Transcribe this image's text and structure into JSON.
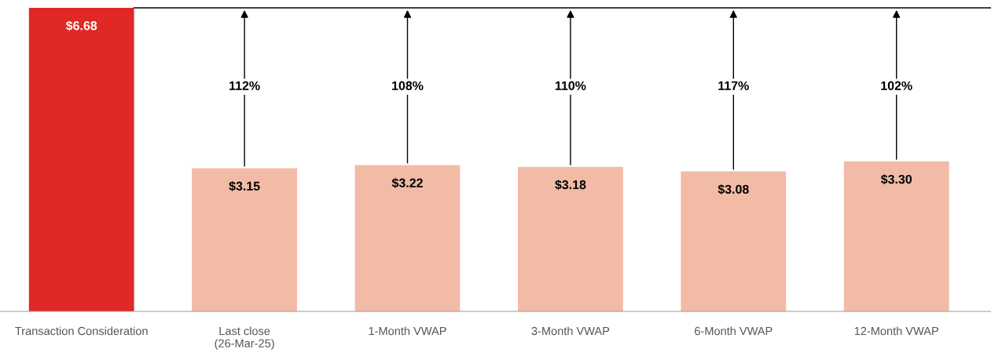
{
  "chart_data": {
    "type": "bar",
    "categories": [
      "Transaction Consideration",
      "Last close\n(26-Mar-25)",
      "1-Month VWAP",
      "3-Month VWAP",
      "6-Month VWAP",
      "12-Month VWAP"
    ],
    "values": [
      6.68,
      3.15,
      3.22,
      3.18,
      3.08,
      3.3
    ],
    "colors": [
      "#e02826",
      "#f2bba6",
      "#f2bba6",
      "#f2bba6",
      "#f2bba6",
      "#f2bba6"
    ],
    "value_labels": [
      "$6.68",
      "$3.15",
      "$3.22",
      "$3.18",
      "$3.08",
      "$3.30"
    ],
    "ref_lines": [
      {
        "axis": "y",
        "value": 6.68,
        "color": "#000000"
      }
    ],
    "annotations": [
      "112%",
      "108%",
      "110%",
      "117%",
      "102%"
    ],
    "grid": false,
    "legend": false
  }
}
